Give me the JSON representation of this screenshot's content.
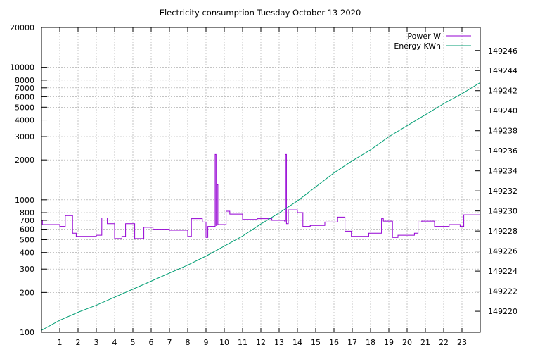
{
  "chart_data": {
    "type": "line",
    "title": "Electricity consumption Tuesday October 13 2020",
    "x_ticks": [
      1,
      2,
      3,
      4,
      5,
      6,
      7,
      8,
      9,
      10,
      11,
      12,
      13,
      14,
      15,
      16,
      17,
      18,
      19,
      20,
      21,
      22,
      23
    ],
    "xlim": [
      0,
      24
    ],
    "y_left": {
      "scale": "log",
      "lim": [
        100,
        20000
      ],
      "ticks": [
        100,
        200,
        300,
        400,
        500,
        600,
        700,
        800,
        1000,
        2000,
        3000,
        4000,
        5000,
        6000,
        7000,
        8000,
        10000,
        20000
      ]
    },
    "y_right": {
      "scale": "linear",
      "lim": [
        149217.9,
        149248.3
      ],
      "ticks": [
        149220,
        149222,
        149224,
        149226,
        149228,
        149230,
        149232,
        149234,
        149236,
        149238,
        149240,
        149242,
        149244,
        149246
      ]
    },
    "grid": true,
    "legend_position": "top-right",
    "series": [
      {
        "name": "Power W",
        "axis": "left",
        "color": "#9400d3",
        "step": true,
        "points": [
          [
            0,
            700
          ],
          [
            0.05,
            650
          ],
          [
            1,
            630
          ],
          [
            1.3,
            760
          ],
          [
            1.7,
            560
          ],
          [
            1.9,
            530
          ],
          [
            3,
            540
          ],
          [
            3.3,
            730
          ],
          [
            3.6,
            660
          ],
          [
            4,
            510
          ],
          [
            4.4,
            530
          ],
          [
            4.6,
            660
          ],
          [
            5.1,
            510
          ],
          [
            5.6,
            620
          ],
          [
            6.1,
            600
          ],
          [
            7,
            590
          ],
          [
            8,
            530
          ],
          [
            8.2,
            720
          ],
          [
            8.8,
            680
          ],
          [
            9.0,
            520
          ],
          [
            9.1,
            630
          ],
          [
            9.5,
            2200
          ],
          [
            9.55,
            640
          ],
          [
            9.6,
            1300
          ],
          [
            9.65,
            650
          ],
          [
            10.1,
            820
          ],
          [
            10.3,
            780
          ],
          [
            11,
            710
          ],
          [
            11.8,
            720
          ],
          [
            12.6,
            700
          ],
          [
            13.3,
            690
          ],
          [
            13.35,
            2200
          ],
          [
            13.4,
            660
          ],
          [
            13.5,
            840
          ],
          [
            14,
            800
          ],
          [
            14.3,
            630
          ],
          [
            14.7,
            640
          ],
          [
            15.5,
            680
          ],
          [
            16.2,
            740
          ],
          [
            16.6,
            580
          ],
          [
            16.95,
            530
          ],
          [
            17.9,
            560
          ],
          [
            18.6,
            720
          ],
          [
            18.7,
            690
          ],
          [
            19.2,
            520
          ],
          [
            19.5,
            540
          ],
          [
            20.4,
            560
          ],
          [
            20.6,
            680
          ],
          [
            20.8,
            690
          ],
          [
            21.5,
            630
          ],
          [
            22.3,
            650
          ],
          [
            22.9,
            630
          ],
          [
            23.1,
            770
          ],
          [
            23.8,
            770
          ],
          [
            24,
            800
          ]
        ]
      },
      {
        "name": "Energy KWh",
        "axis": "right",
        "color": "#009e73",
        "step": false,
        "points": [
          [
            0,
            149218.1
          ],
          [
            1,
            149219.1
          ],
          [
            2,
            149219.9
          ],
          [
            3,
            149220.6
          ],
          [
            4,
            149221.4
          ],
          [
            5,
            149222.2
          ],
          [
            6,
            149223.0
          ],
          [
            7,
            149223.8
          ],
          [
            8,
            149224.6
          ],
          [
            9,
            149225.5
          ],
          [
            10,
            149226.5
          ],
          [
            11,
            149227.5
          ],
          [
            12,
            149228.7
          ],
          [
            13,
            149229.8
          ],
          [
            14,
            149231.0
          ],
          [
            15,
            149232.4
          ],
          [
            16,
            149233.8
          ],
          [
            17,
            149235.0
          ],
          [
            18,
            149236.1
          ],
          [
            19,
            149237.4
          ],
          [
            20,
            149238.5
          ],
          [
            21,
            149239.6
          ],
          [
            22,
            149240.7
          ],
          [
            23,
            149241.7
          ],
          [
            24,
            149242.8
          ]
        ]
      }
    ]
  }
}
